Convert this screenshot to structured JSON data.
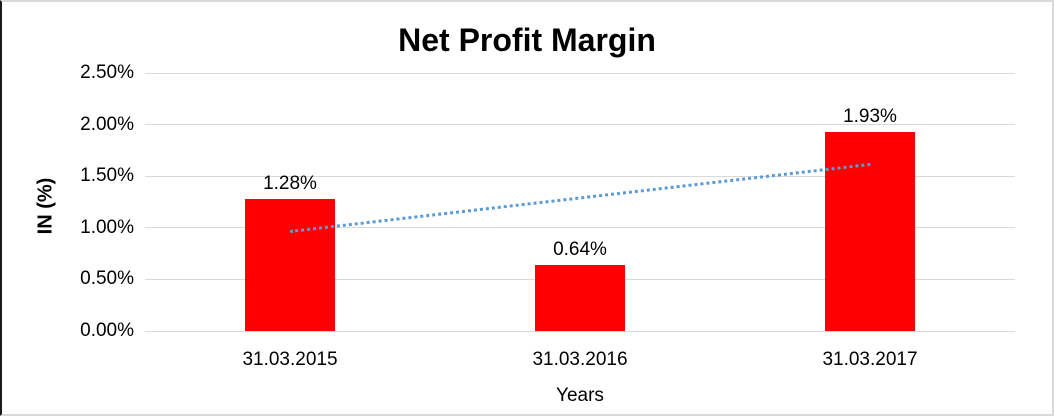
{
  "chart_data": {
    "type": "bar",
    "title": "Net Profit Margin",
    "xlabel": "Years",
    "ylabel": "IN (%)",
    "categories": [
      "31.03.2015",
      "31.03.2016",
      "31.03.2017"
    ],
    "values": [
      1.28,
      0.64,
      1.93
    ],
    "data_labels": [
      "1.28%",
      "0.64%",
      "1.93%"
    ],
    "ylim": [
      0,
      2.5
    ],
    "yticks": [
      {
        "value": 0.0,
        "label": "0.00%"
      },
      {
        "value": 0.5,
        "label": "0.50%"
      },
      {
        "value": 1.0,
        "label": "1.00%"
      },
      {
        "value": 1.5,
        "label": "1.50%"
      },
      {
        "value": 2.0,
        "label": "2.00%"
      },
      {
        "value": 2.5,
        "label": "2.50%"
      }
    ],
    "grid": true,
    "legend": "none",
    "bar_color": "#FF0000",
    "gridline_color": "#D9D9D9",
    "text_color": "#000000",
    "plot_bg": "#FFFFFF",
    "trendline": {
      "type": "linear",
      "style": "dotted",
      "color": "#5B9BD5",
      "start_value": 0.96,
      "end_value": 1.61
    }
  }
}
